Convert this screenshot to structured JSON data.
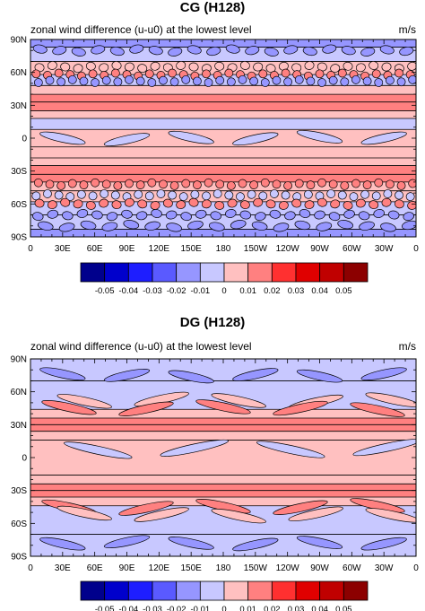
{
  "chart_data": [
    {
      "type": "heatmap",
      "title": "CG (H128)",
      "subtitle": "zonal wind difference (u-u0) at the lowest level",
      "units": "m/s",
      "x_tick_labels": [
        "0",
        "30E",
        "60E",
        "90E",
        "120E",
        "150E",
        "180",
        "150W",
        "120W",
        "90W",
        "60W",
        "30W",
        "0"
      ],
      "y_tick_labels": [
        "90N",
        "60N",
        "30N",
        "0",
        "30S",
        "60S",
        "90S"
      ],
      "xlim": [
        0,
        360
      ],
      "ylim": [
        -90,
        90
      ],
      "colorbar_levels": [
        "-0.05",
        "-0.04",
        "-0.03",
        "-0.02",
        "-0.01",
        "0",
        "0.01",
        "0.02",
        "0.03",
        "0.04",
        "0.05"
      ],
      "colorbar_colors": [
        "#00008c",
        "#0000cc",
        "#1e1eff",
        "#5a5aff",
        "#9696ff",
        "#c8c8ff",
        "#ffc0c0",
        "#ff8080",
        "#ff3030",
        "#e00000",
        "#c00000",
        "#8c0000"
      ],
      "zonal_bands": [
        {
          "lat": [
            83,
            90
          ],
          "level": -0.01
        },
        {
          "lat": [
            70,
            83
          ],
          "level": -0.005
        },
        {
          "lat": [
            58,
            70
          ],
          "level": 0.005
        },
        {
          "lat": [
            48,
            58
          ],
          "level": -0.005
        },
        {
          "lat": [
            40,
            48
          ],
          "level": 0.01
        },
        {
          "lat": [
            33,
            40
          ],
          "level": 0.015
        },
        {
          "lat": [
            25,
            33
          ],
          "level": 0.02
        },
        {
          "lat": [
            18,
            25
          ],
          "level": 0.005
        },
        {
          "lat": [
            8,
            18
          ],
          "level": -0.005
        },
        {
          "lat": [
            -8,
            8
          ],
          "level": 0.005
        },
        {
          "lat": [
            -18,
            -8
          ],
          "level": 0.005
        },
        {
          "lat": [
            -25,
            -18
          ],
          "level": 0.005
        },
        {
          "lat": [
            -33,
            -25
          ],
          "level": 0.02
        },
        {
          "lat": [
            -40,
            -33
          ],
          "level": 0.015
        },
        {
          "lat": [
            -48,
            -40
          ],
          "level": 0.01
        },
        {
          "lat": [
            -58,
            -48
          ],
          "level": 0.005
        },
        {
          "lat": [
            -70,
            -58
          ],
          "level": -0.005
        },
        {
          "lat": [
            -83,
            -70
          ],
          "level": -0.005
        },
        {
          "lat": [
            -90,
            -83
          ],
          "level": -0.01
        }
      ],
      "wave_rows": [
        {
          "lat": 80,
          "count": 20,
          "level": -0.01
        },
        {
          "lat": 65,
          "count": 30,
          "level": 0.005
        },
        {
          "lat": 58,
          "count": 34,
          "level": 0.015
        },
        {
          "lat": 52,
          "count": 34,
          "level": -0.01
        },
        {
          "lat": 0,
          "count": 6,
          "level": -0.005
        },
        {
          "lat": -42,
          "count": 34,
          "level": 0.015
        },
        {
          "lat": -52,
          "count": 34,
          "level": -0.005
        },
        {
          "lat": -60,
          "count": 30,
          "level": 0.02
        },
        {
          "lat": -70,
          "count": 26,
          "level": -0.01
        },
        {
          "lat": -80,
          "count": 18,
          "level": -0.01
        }
      ]
    },
    {
      "type": "heatmap",
      "title": "DG (H128)",
      "subtitle": "zonal wind difference (u-u0) at the lowest level",
      "units": "m/s",
      "x_tick_labels": [
        "0",
        "30E",
        "60E",
        "90E",
        "120E",
        "150E",
        "180",
        "150W",
        "120W",
        "90W",
        "60W",
        "30W",
        "0"
      ],
      "y_tick_labels": [
        "90N",
        "60N",
        "30N",
        "0",
        "30S",
        "60S",
        "90S"
      ],
      "xlim": [
        0,
        360
      ],
      "ylim": [
        -90,
        90
      ],
      "colorbar_levels": [
        "-0.05",
        "-0.04",
        "-0.03",
        "-0.02",
        "-0.01",
        "0",
        "0.01",
        "0.02",
        "0.03",
        "0.04",
        "0.05"
      ],
      "colorbar_colors": [
        "#00008c",
        "#0000cc",
        "#1e1eff",
        "#5a5aff",
        "#9696ff",
        "#c8c8ff",
        "#ffc0c0",
        "#ff8080",
        "#ff3030",
        "#e00000",
        "#c00000",
        "#8c0000"
      ],
      "zonal_bands": [
        {
          "lat": [
            70,
            90
          ],
          "level": -0.005
        },
        {
          "lat": [
            44,
            70
          ],
          "level": -0.005
        },
        {
          "lat": [
            36,
            44
          ],
          "level": 0.005
        },
        {
          "lat": [
            30,
            36
          ],
          "level": 0.015
        },
        {
          "lat": [
            24,
            30
          ],
          "level": 0.02
        },
        {
          "lat": [
            16,
            24
          ],
          "level": 0.005
        },
        {
          "lat": [
            -16,
            16
          ],
          "level": 0.005
        },
        {
          "lat": [
            -24,
            -16
          ],
          "level": 0.005
        },
        {
          "lat": [
            -30,
            -24
          ],
          "level": 0.02
        },
        {
          "lat": [
            -36,
            -30
          ],
          "level": 0.015
        },
        {
          "lat": [
            -44,
            -36
          ],
          "level": 0.005
        },
        {
          "lat": [
            -70,
            -44
          ],
          "level": -0.005
        },
        {
          "lat": [
            -90,
            -70
          ],
          "level": -0.005
        }
      ],
      "wave_rows": [
        {
          "lat": 75,
          "count": 6,
          "level": -0.01
        },
        {
          "lat": 52,
          "count": 5,
          "level": 0.005
        },
        {
          "lat": 45,
          "count": 5,
          "level": 0.015
        },
        {
          "lat": 8,
          "count": 4,
          "level": -0.005
        },
        {
          "lat": -45,
          "count": 5,
          "level": 0.015
        },
        {
          "lat": -52,
          "count": 5,
          "level": 0.005
        },
        {
          "lat": -78,
          "count": 6,
          "level": -0.01
        }
      ]
    }
  ]
}
